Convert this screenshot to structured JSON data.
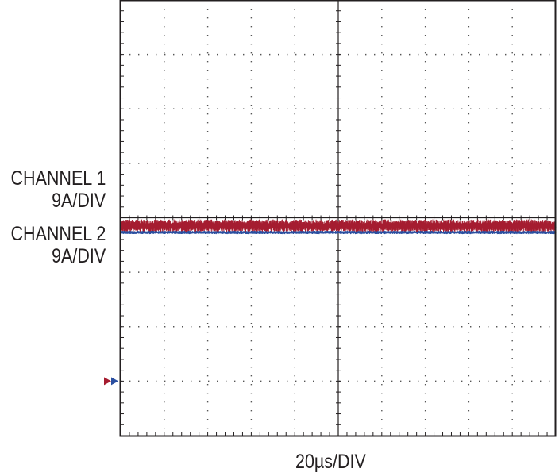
{
  "channels": [
    {
      "name": "CHANNEL 1",
      "scale": "9A/DIV",
      "color": "#a51c30"
    },
    {
      "name": "CHANNEL 2",
      "scale": "9A/DIV",
      "color": "#2a4fa0"
    }
  ],
  "timebase": "20µs/DIV",
  "chart_data": {
    "type": "line",
    "title": "",
    "xlabel": "20µs/DIV",
    "ylabel": "",
    "x_divisions": 10,
    "y_divisions": 8,
    "xlim": [
      0,
      10
    ],
    "ylim": [
      0,
      8
    ],
    "grid": true,
    "series": [
      {
        "name": "CHANNEL 1",
        "scale": "9A/DIV",
        "color": "#a51c30",
        "level_div": 3.85,
        "ripple_div": 0.12,
        "ground_marker_div": 1.0
      },
      {
        "name": "CHANNEL 2",
        "scale": "9A/DIV",
        "color": "#2a4fa0",
        "level_div": 3.73,
        "ripple_div": 0.03,
        "ground_marker_div": 1.0
      }
    ]
  }
}
